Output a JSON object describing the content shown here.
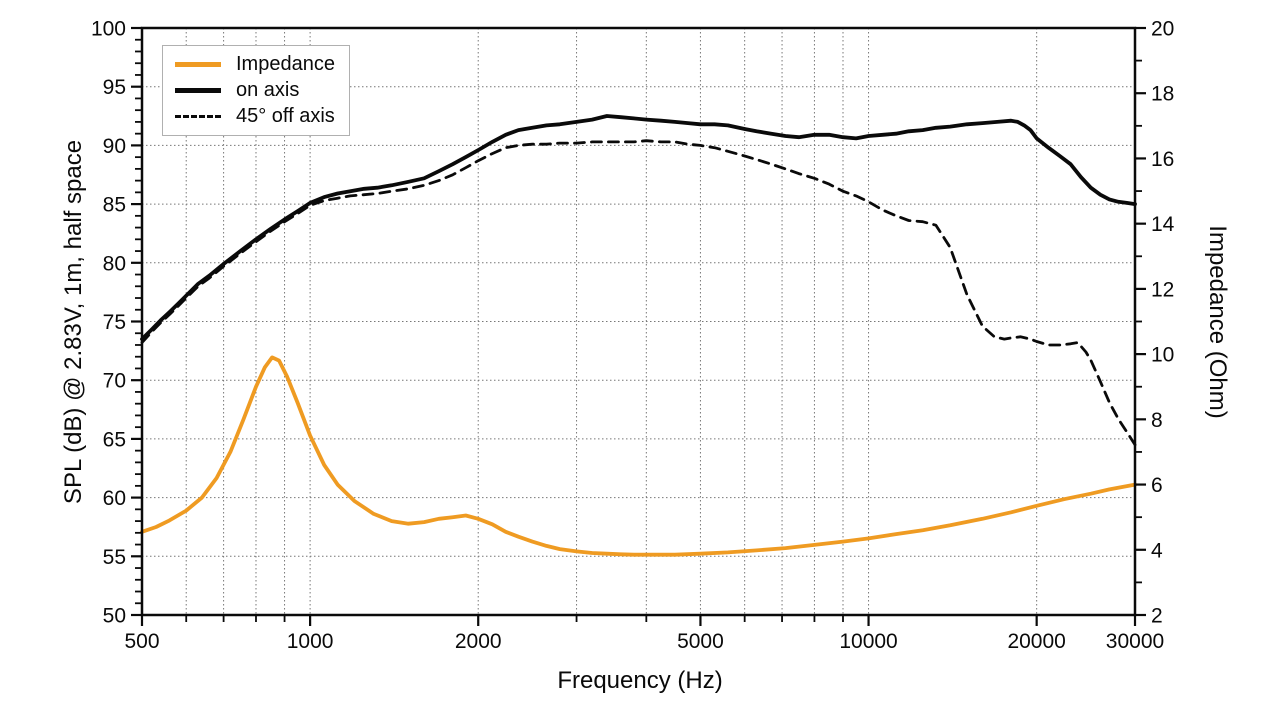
{
  "chart_data": {
    "type": "line",
    "title": "",
    "xlabel": "Frequency (Hz)",
    "ylabel_left": "SPL (dB) @ 2.83V, 1m, half space",
    "ylabel_right": "Impedance (Ohm)",
    "x_scale": "log",
    "x_range": [
      500,
      30000
    ],
    "y_left_range": [
      50,
      100
    ],
    "y_right_range": [
      2,
      20
    ],
    "x_ticks_labeled": [
      500,
      1000,
      2000,
      5000,
      10000,
      20000,
      30000
    ],
    "x_minor_ticks": [
      600,
      700,
      800,
      900,
      3000,
      4000,
      6000,
      7000,
      8000,
      9000
    ],
    "x_gridlines": [
      600,
      700,
      800,
      900,
      1000,
      2000,
      3000,
      4000,
      5000,
      6000,
      7000,
      8000,
      9000,
      10000,
      20000,
      30000
    ],
    "y_left_ticks_labeled": [
      50,
      55,
      60,
      65,
      70,
      75,
      80,
      85,
      90,
      95,
      100
    ],
    "y_left_minor_step": 1,
    "y_left_gridlines": [
      55,
      60,
      65,
      70,
      75,
      80,
      85,
      90,
      95
    ],
    "y_right_ticks_labeled": [
      2,
      4,
      6,
      8,
      10,
      12,
      14,
      16,
      18,
      20
    ],
    "y_right_minor_step": 1,
    "grid": "dotted",
    "legend_position": "top-left",
    "colors": {
      "impedance": "#ef9b22",
      "curves": "#0a0a0a",
      "grid": "#777777",
      "legend_border": "#b0b0b0"
    },
    "series": [
      {
        "name": "Impedance",
        "axis": "right",
        "style": "solid",
        "color": "#ef9b22",
        "points": [
          [
            500,
            4.55
          ],
          [
            530,
            4.7
          ],
          [
            560,
            4.9
          ],
          [
            600,
            5.2
          ],
          [
            640,
            5.6
          ],
          [
            680,
            6.2
          ],
          [
            720,
            7.0
          ],
          [
            760,
            8.0
          ],
          [
            800,
            9.0
          ],
          [
            830,
            9.6
          ],
          [
            855,
            9.9
          ],
          [
            880,
            9.8
          ],
          [
            910,
            9.3
          ],
          [
            950,
            8.5
          ],
          [
            1000,
            7.5
          ],
          [
            1060,
            6.6
          ],
          [
            1120,
            6.0
          ],
          [
            1200,
            5.5
          ],
          [
            1300,
            5.1
          ],
          [
            1400,
            4.88
          ],
          [
            1500,
            4.8
          ],
          [
            1600,
            4.85
          ],
          [
            1700,
            4.95
          ],
          [
            1800,
            5.0
          ],
          [
            1900,
            5.05
          ],
          [
            2000,
            4.95
          ],
          [
            2120,
            4.78
          ],
          [
            2240,
            4.55
          ],
          [
            2360,
            4.4
          ],
          [
            2500,
            4.25
          ],
          [
            2650,
            4.12
          ],
          [
            2800,
            4.02
          ],
          [
            3000,
            3.95
          ],
          [
            3200,
            3.9
          ],
          [
            3400,
            3.88
          ],
          [
            3600,
            3.86
          ],
          [
            3800,
            3.85
          ],
          [
            4000,
            3.85
          ],
          [
            4500,
            3.85
          ],
          [
            5000,
            3.88
          ],
          [
            5600,
            3.92
          ],
          [
            6300,
            3.98
          ],
          [
            7100,
            4.05
          ],
          [
            8000,
            4.15
          ],
          [
            9000,
            4.25
          ],
          [
            10000,
            4.35
          ],
          [
            11200,
            4.48
          ],
          [
            12500,
            4.6
          ],
          [
            14000,
            4.75
          ],
          [
            16000,
            4.95
          ],
          [
            18000,
            5.15
          ],
          [
            20000,
            5.35
          ],
          [
            22400,
            5.55
          ],
          [
            25000,
            5.72
          ],
          [
            27000,
            5.85
          ],
          [
            30000,
            6.0
          ]
        ]
      },
      {
        "name": "on axis",
        "axis": "left",
        "style": "solid",
        "color": "#0a0a0a",
        "points": [
          [
            500,
            73.5
          ],
          [
            520,
            74.3
          ],
          [
            540,
            75.1
          ],
          [
            560,
            75.8
          ],
          [
            580,
            76.5
          ],
          [
            600,
            77.2
          ],
          [
            630,
            78.2
          ],
          [
            660,
            78.9
          ],
          [
            700,
            79.9
          ],
          [
            750,
            81.0
          ],
          [
            800,
            82.0
          ],
          [
            850,
            82.9
          ],
          [
            900,
            83.7
          ],
          [
            950,
            84.4
          ],
          [
            1000,
            85.1
          ],
          [
            1060,
            85.6
          ],
          [
            1120,
            85.9
          ],
          [
            1180,
            86.1
          ],
          [
            1250,
            86.3
          ],
          [
            1320,
            86.4
          ],
          [
            1400,
            86.6
          ],
          [
            1500,
            86.9
          ],
          [
            1600,
            87.2
          ],
          [
            1700,
            87.8
          ],
          [
            1800,
            88.4
          ],
          [
            1900,
            89.0
          ],
          [
            2000,
            89.6
          ],
          [
            2120,
            90.3
          ],
          [
            2240,
            90.9
          ],
          [
            2360,
            91.3
          ],
          [
            2500,
            91.5
          ],
          [
            2650,
            91.7
          ],
          [
            2800,
            91.8
          ],
          [
            3000,
            92.0
          ],
          [
            3200,
            92.2
          ],
          [
            3400,
            92.5
          ],
          [
            3600,
            92.4
          ],
          [
            3800,
            92.3
          ],
          [
            4000,
            92.2
          ],
          [
            4250,
            92.1
          ],
          [
            4500,
            92.0
          ],
          [
            4750,
            91.9
          ],
          [
            5000,
            91.8
          ],
          [
            5300,
            91.8
          ],
          [
            5600,
            91.7
          ],
          [
            6000,
            91.4
          ],
          [
            6300,
            91.2
          ],
          [
            6700,
            91.0
          ],
          [
            7100,
            90.8
          ],
          [
            7500,
            90.7
          ],
          [
            8000,
            90.9
          ],
          [
            8500,
            90.9
          ],
          [
            9000,
            90.7
          ],
          [
            9500,
            90.6
          ],
          [
            10000,
            90.8
          ],
          [
            10600,
            90.9
          ],
          [
            11200,
            91.0
          ],
          [
            11800,
            91.2
          ],
          [
            12500,
            91.3
          ],
          [
            13200,
            91.5
          ],
          [
            14000,
            91.6
          ],
          [
            15000,
            91.8
          ],
          [
            16000,
            91.9
          ],
          [
            17000,
            92.0
          ],
          [
            18000,
            92.1
          ],
          [
            18500,
            92.0
          ],
          [
            19000,
            91.7
          ],
          [
            19500,
            91.3
          ],
          [
            20000,
            90.6
          ],
          [
            21000,
            89.8
          ],
          [
            22000,
            89.1
          ],
          [
            23000,
            88.4
          ],
          [
            24000,
            87.3
          ],
          [
            25000,
            86.4
          ],
          [
            26000,
            85.8
          ],
          [
            27000,
            85.4
          ],
          [
            28000,
            85.2
          ],
          [
            29000,
            85.1
          ],
          [
            30000,
            85.0
          ]
        ]
      },
      {
        "name": "45° off axis",
        "axis": "left",
        "style": "dashed",
        "color": "#0a0a0a",
        "points": [
          [
            500,
            73.2
          ],
          [
            520,
            74.1
          ],
          [
            540,
            74.9
          ],
          [
            560,
            75.6
          ],
          [
            580,
            76.3
          ],
          [
            600,
            77.0
          ],
          [
            630,
            78.0
          ],
          [
            660,
            78.7
          ],
          [
            700,
            79.7
          ],
          [
            750,
            80.8
          ],
          [
            800,
            81.8
          ],
          [
            850,
            82.7
          ],
          [
            900,
            83.5
          ],
          [
            950,
            84.2
          ],
          [
            1000,
            84.9
          ],
          [
            1060,
            85.3
          ],
          [
            1120,
            85.5
          ],
          [
            1180,
            85.7
          ],
          [
            1250,
            85.8
          ],
          [
            1320,
            85.9
          ],
          [
            1400,
            86.1
          ],
          [
            1500,
            86.3
          ],
          [
            1600,
            86.6
          ],
          [
            1700,
            87.0
          ],
          [
            1800,
            87.5
          ],
          [
            1900,
            88.1
          ],
          [
            2000,
            88.7
          ],
          [
            2120,
            89.3
          ],
          [
            2240,
            89.8
          ],
          [
            2360,
            90.0
          ],
          [
            2500,
            90.1
          ],
          [
            2650,
            90.1
          ],
          [
            2800,
            90.2
          ],
          [
            3000,
            90.2
          ],
          [
            3200,
            90.3
          ],
          [
            3400,
            90.3
          ],
          [
            3600,
            90.3
          ],
          [
            3800,
            90.3
          ],
          [
            4000,
            90.4
          ],
          [
            4250,
            90.3
          ],
          [
            4500,
            90.3
          ],
          [
            4750,
            90.1
          ],
          [
            5000,
            90.0
          ],
          [
            5300,
            89.8
          ],
          [
            5600,
            89.5
          ],
          [
            6000,
            89.1
          ],
          [
            6300,
            88.8
          ],
          [
            6700,
            88.4
          ],
          [
            7100,
            88.0
          ],
          [
            7500,
            87.6
          ],
          [
            8000,
            87.2
          ],
          [
            8500,
            86.7
          ],
          [
            9000,
            86.1
          ],
          [
            9500,
            85.7
          ],
          [
            10000,
            85.2
          ],
          [
            10600,
            84.5
          ],
          [
            11200,
            84.0
          ],
          [
            11800,
            83.6
          ],
          [
            12500,
            83.5
          ],
          [
            13200,
            83.2
          ],
          [
            14000,
            81.3
          ],
          [
            15000,
            77.3
          ],
          [
            16000,
            74.6
          ],
          [
            16800,
            73.7
          ],
          [
            17500,
            73.5
          ],
          [
            18000,
            73.6
          ],
          [
            18700,
            73.7
          ],
          [
            19500,
            73.5
          ],
          [
            20000,
            73.3
          ],
          [
            21000,
            73.0
          ],
          [
            22000,
            73.0
          ],
          [
            23000,
            73.1
          ],
          [
            23700,
            73.2
          ],
          [
            24500,
            72.4
          ],
          [
            25000,
            71.7
          ],
          [
            26000,
            69.9
          ],
          [
            27000,
            68.1
          ],
          [
            28000,
            66.7
          ],
          [
            29000,
            65.6
          ],
          [
            30000,
            64.5
          ]
        ]
      }
    ]
  },
  "legend": {
    "items": [
      {
        "label": "Impedance"
      },
      {
        "label": "on axis"
      },
      {
        "label": "45° off axis"
      }
    ]
  }
}
